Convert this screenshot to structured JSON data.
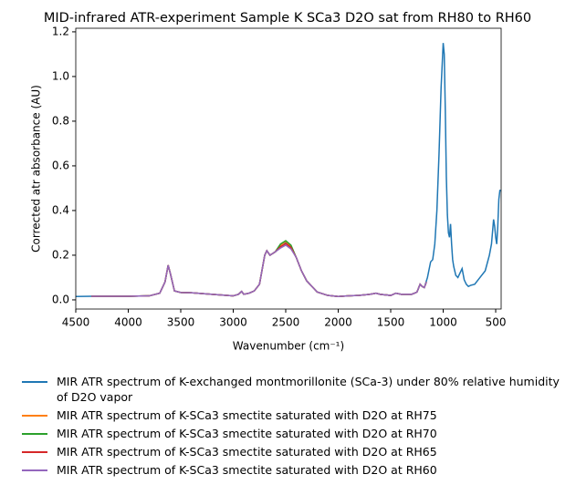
{
  "chart_data": {
    "type": "line",
    "title": "MID-infrared ATR-experiment Sample K SCa3 D2O sat from RH80 to RH60",
    "xlabel": "Wavenumber (cm⁻¹)",
    "ylabel": "Corrected atr absorbance (AU)",
    "xlim": [
      4500,
      448
    ],
    "ylim": [
      -0.041,
      1.216
    ],
    "xticks": [
      4500,
      4000,
      3500,
      3000,
      2500,
      2000,
      1500,
      1000,
      500
    ],
    "yticks": [
      {
        "value": 0,
        "label": "0.0"
      },
      0.2,
      0.4,
      0.6,
      0.8,
      {
        "value": 1,
        "label": "1.0"
      },
      1.2
    ],
    "legend": "below",
    "series": [
      {
        "name": "MIR ATR spectrum of K-exchanged montmorillonite (SCa-3) under 80% relative humidity of D2O vapor",
        "color": "#1f77b4",
        "x": [
          4500,
          4350,
          4000,
          3800,
          3700,
          3650,
          3620,
          3600,
          3560,
          3500,
          3400,
          3200,
          3000,
          2950,
          2920,
          2900,
          2850,
          2800,
          2750,
          2700,
          2680,
          2650,
          2600,
          2550,
          2500,
          2450,
          2400,
          2350,
          2300,
          2200,
          2100,
          2000,
          1900,
          1800,
          1700,
          1640,
          1600,
          1500,
          1450,
          1400,
          1300,
          1250,
          1220,
          1200,
          1180,
          1150,
          1120,
          1100,
          1080,
          1060,
          1040,
          1020,
          1000,
          990,
          980,
          970,
          960,
          950,
          940,
          930,
          920,
          910,
          900,
          880,
          860,
          840,
          820,
          800,
          780,
          760,
          740,
          700,
          650,
          600,
          560,
          540,
          520,
          510,
          500,
          490,
          480,
          470,
          460,
          450
        ],
        "values": [
          0.015,
          0.016,
          0.016,
          0.018,
          0.03,
          0.08,
          0.155,
          0.12,
          0.04,
          0.033,
          0.032,
          0.025,
          0.018,
          0.025,
          0.038,
          0.025,
          0.03,
          0.04,
          0.07,
          0.2,
          0.22,
          0.2,
          0.215,
          0.235,
          0.255,
          0.235,
          0.19,
          0.13,
          0.085,
          0.035,
          0.02,
          0.015,
          0.018,
          0.02,
          0.025,
          0.03,
          0.025,
          0.02,
          0.03,
          0.025,
          0.025,
          0.035,
          0.07,
          0.06,
          0.055,
          0.1,
          0.17,
          0.18,
          0.25,
          0.4,
          0.65,
          0.95,
          1.15,
          1.1,
          0.85,
          0.55,
          0.38,
          0.3,
          0.28,
          0.34,
          0.25,
          0.18,
          0.15,
          0.11,
          0.1,
          0.12,
          0.14,
          0.09,
          0.07,
          0.06,
          0.065,
          0.07,
          0.1,
          0.13,
          0.2,
          0.25,
          0.36,
          0.33,
          0.28,
          0.25,
          0.33,
          0.45,
          0.49,
          0.49
        ]
      },
      {
        "name": "MIR ATR spectrum of K-SCa3 smectite saturated with D2O at RH75",
        "color": "#ff7f0e",
        "x": [
          4350,
          4000,
          3800,
          3700,
          3650,
          3620,
          3600,
          3560,
          3500,
          3400,
          3200,
          3000,
          2950,
          2920,
          2900,
          2850,
          2800,
          2750,
          2700,
          2680,
          2650,
          2600,
          2550,
          2500,
          2450,
          2400,
          2350,
          2300,
          2200,
          2100,
          2000,
          1900,
          1800,
          1700,
          1640,
          1600,
          1500,
          1450,
          1400,
          1300,
          1250,
          1220,
          1200,
          1180,
          1160
        ],
        "values": [
          0.016,
          0.016,
          0.018,
          0.03,
          0.08,
          0.155,
          0.12,
          0.04,
          0.033,
          0.032,
          0.025,
          0.018,
          0.025,
          0.038,
          0.025,
          0.03,
          0.04,
          0.07,
          0.2,
          0.22,
          0.2,
          0.215,
          0.245,
          0.262,
          0.24,
          0.19,
          0.13,
          0.085,
          0.035,
          0.02,
          0.015,
          0.018,
          0.02,
          0.025,
          0.03,
          0.025,
          0.02,
          0.03,
          0.025,
          0.025,
          0.035,
          0.07,
          0.06,
          0.055,
          0.08
        ]
      },
      {
        "name": "MIR ATR spectrum of K-SCa3 smectite saturated with D2O at RH70",
        "color": "#2ca02c",
        "x": [
          4350,
          4000,
          3800,
          3700,
          3650,
          3620,
          3600,
          3560,
          3500,
          3400,
          3200,
          3000,
          2950,
          2920,
          2900,
          2850,
          2800,
          2750,
          2700,
          2680,
          2650,
          2600,
          2550,
          2500,
          2450,
          2400,
          2350,
          2300,
          2200,
          2100,
          2000,
          1900,
          1800,
          1700,
          1640,
          1600,
          1500,
          1450,
          1400,
          1300,
          1250,
          1220,
          1200,
          1180,
          1160
        ],
        "values": [
          0.016,
          0.016,
          0.018,
          0.03,
          0.08,
          0.155,
          0.12,
          0.04,
          0.033,
          0.032,
          0.025,
          0.018,
          0.025,
          0.038,
          0.025,
          0.03,
          0.04,
          0.07,
          0.2,
          0.22,
          0.2,
          0.215,
          0.25,
          0.265,
          0.245,
          0.19,
          0.13,
          0.085,
          0.035,
          0.02,
          0.015,
          0.018,
          0.02,
          0.025,
          0.03,
          0.025,
          0.02,
          0.03,
          0.025,
          0.025,
          0.035,
          0.07,
          0.06,
          0.055,
          0.08
        ]
      },
      {
        "name": "MIR ATR spectrum of K-SCa3 smectite saturated with D2O at RH65",
        "color": "#d62728",
        "x": [
          4350,
          4000,
          3800,
          3700,
          3650,
          3620,
          3600,
          3560,
          3500,
          3400,
          3200,
          3000,
          2950,
          2920,
          2900,
          2850,
          2800,
          2750,
          2700,
          2680,
          2650,
          2600,
          2550,
          2500,
          2450,
          2400,
          2350,
          2300,
          2200,
          2100,
          2000,
          1900,
          1800,
          1700,
          1640,
          1600,
          1500,
          1450,
          1400,
          1300,
          1250,
          1220,
          1200,
          1180,
          1160
        ],
        "values": [
          0.016,
          0.016,
          0.018,
          0.03,
          0.08,
          0.155,
          0.12,
          0.04,
          0.033,
          0.032,
          0.025,
          0.018,
          0.025,
          0.038,
          0.025,
          0.03,
          0.04,
          0.07,
          0.2,
          0.22,
          0.2,
          0.215,
          0.238,
          0.252,
          0.235,
          0.19,
          0.13,
          0.085,
          0.035,
          0.02,
          0.015,
          0.018,
          0.02,
          0.025,
          0.03,
          0.025,
          0.02,
          0.03,
          0.025,
          0.025,
          0.035,
          0.07,
          0.06,
          0.055,
          0.08
        ]
      },
      {
        "name": "MIR ATR spectrum of K-SCa3 smectite saturated with D2O at RH60",
        "color": "#9467bd",
        "x": [
          4350,
          4000,
          3800,
          3700,
          3650,
          3620,
          3600,
          3560,
          3500,
          3400,
          3200,
          3000,
          2950,
          2920,
          2900,
          2850,
          2800,
          2750,
          2700,
          2680,
          2650,
          2600,
          2550,
          2500,
          2450,
          2400,
          2350,
          2300,
          2200,
          2100,
          2000,
          1900,
          1800,
          1700,
          1640,
          1600,
          1500,
          1450,
          1400,
          1300,
          1250,
          1220,
          1200,
          1180,
          1160
        ],
        "values": [
          0.016,
          0.016,
          0.018,
          0.03,
          0.08,
          0.155,
          0.12,
          0.04,
          0.033,
          0.032,
          0.025,
          0.018,
          0.025,
          0.038,
          0.025,
          0.03,
          0.04,
          0.07,
          0.2,
          0.22,
          0.2,
          0.215,
          0.232,
          0.245,
          0.228,
          0.19,
          0.13,
          0.085,
          0.035,
          0.02,
          0.015,
          0.018,
          0.02,
          0.025,
          0.03,
          0.025,
          0.02,
          0.03,
          0.025,
          0.025,
          0.035,
          0.07,
          0.06,
          0.055,
          0.08
        ]
      }
    ]
  }
}
